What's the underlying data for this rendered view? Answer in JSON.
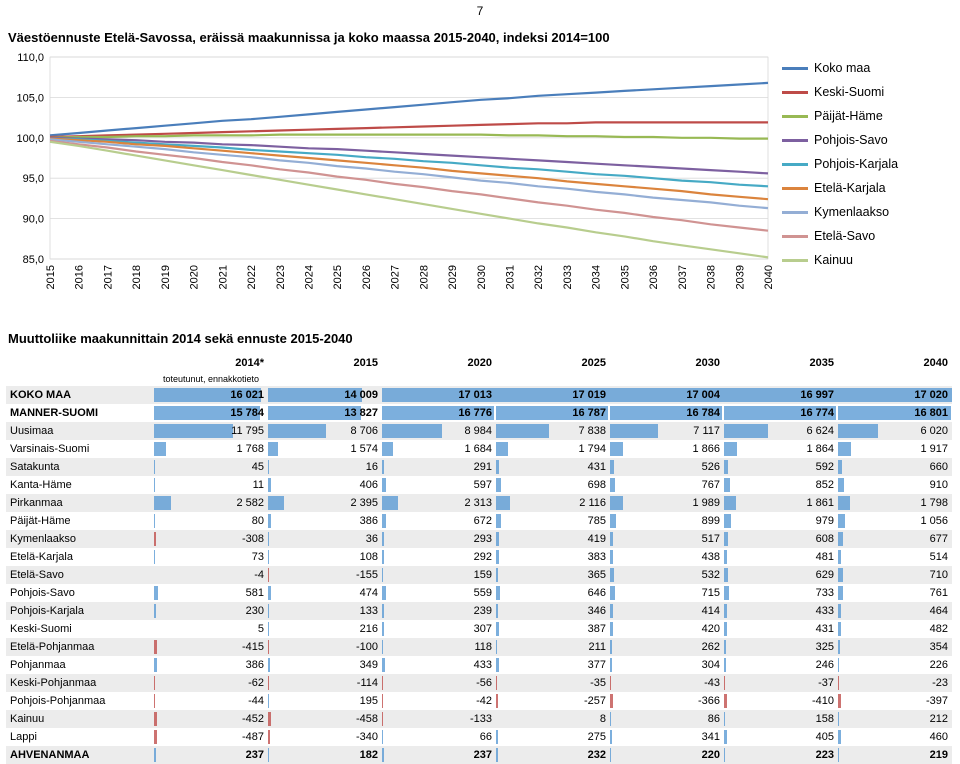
{
  "page_number": "7",
  "chart": {
    "title": "Väestöennuste Etelä-Savossa, eräissä maakunnissa ja koko maassa 2015-2040, indeksi 2014=100",
    "type": "line",
    "background_color": "#ffffff",
    "grid_color": "#d9d9d9",
    "plot_border_color": "#bfbfbf",
    "y": {
      "min": 85,
      "max": 110,
      "step": 5,
      "label_fontsize": 11,
      "ticks": [
        "85,0",
        "90,0",
        "95,0",
        "100,0",
        "105,0",
        "110,0"
      ]
    },
    "x": {
      "min": 2015,
      "max": 2040,
      "labels": [
        "2015",
        "2016",
        "2017",
        "2018",
        "2019",
        "2020",
        "2021",
        "2022",
        "2023",
        "2024",
        "2025",
        "2026",
        "2027",
        "2028",
        "2029",
        "2030",
        "2031",
        "2032",
        "2033",
        "2034",
        "2035",
        "2036",
        "2037",
        "2038",
        "2039",
        "2040"
      ],
      "label_fontsize": 11
    },
    "line_width": 2.2,
    "series": [
      {
        "name": "Koko maa",
        "color": "#4a7ebb",
        "values": [
          100.3,
          100.6,
          100.9,
          101.2,
          101.5,
          101.8,
          102.1,
          102.3,
          102.6,
          102.9,
          103.2,
          103.5,
          103.8,
          104.1,
          104.4,
          104.7,
          104.9,
          105.2,
          105.4,
          105.6,
          105.8,
          106.0,
          106.2,
          106.4,
          106.6,
          106.8
        ]
      },
      {
        "name": "Keski-Suomi",
        "color": "#be4b48",
        "values": [
          100.1,
          100.2,
          100.3,
          100.4,
          100.5,
          100.6,
          100.7,
          100.8,
          100.9,
          101.0,
          101.1,
          101.2,
          101.3,
          101.4,
          101.5,
          101.6,
          101.7,
          101.8,
          101.8,
          101.9,
          101.9,
          101.9,
          101.9,
          101.9,
          101.9,
          101.9
        ]
      },
      {
        "name": "Päijät-Häme",
        "color": "#98b954",
        "values": [
          100.0,
          100.1,
          100.1,
          100.2,
          100.2,
          100.3,
          100.3,
          100.3,
          100.4,
          100.4,
          100.4,
          100.4,
          100.4,
          100.4,
          100.4,
          100.4,
          100.3,
          100.3,
          100.2,
          100.2,
          100.1,
          100.1,
          100.0,
          100.0,
          99.9,
          99.9
        ]
      },
      {
        "name": "Pohjois-Savo",
        "color": "#7d60a0",
        "values": [
          100.0,
          99.9,
          99.8,
          99.7,
          99.5,
          99.4,
          99.2,
          99.1,
          98.9,
          98.7,
          98.6,
          98.4,
          98.2,
          98.0,
          97.8,
          97.6,
          97.4,
          97.2,
          97.0,
          96.8,
          96.6,
          96.4,
          96.2,
          96.0,
          95.8,
          95.6
        ]
      },
      {
        "name": "Pohjois-Karjala",
        "color": "#46aac5",
        "values": [
          99.9,
          99.8,
          99.6,
          99.4,
          99.2,
          99.0,
          98.8,
          98.5,
          98.3,
          98.1,
          97.9,
          97.6,
          97.4,
          97.1,
          96.9,
          96.6,
          96.3,
          96.1,
          95.8,
          95.5,
          95.3,
          95.0,
          94.7,
          94.5,
          94.2,
          94.0
        ]
      },
      {
        "name": "Etelä-Karjala",
        "color": "#db843d",
        "values": [
          99.9,
          99.7,
          99.5,
          99.2,
          99.0,
          98.7,
          98.4,
          98.1,
          97.8,
          97.5,
          97.2,
          96.9,
          96.6,
          96.3,
          95.9,
          95.6,
          95.3,
          95.0,
          94.6,
          94.3,
          94.0,
          93.7,
          93.4,
          93.0,
          92.7,
          92.4
        ]
      },
      {
        "name": "Kymenlaakso",
        "color": "#94aed5",
        "values": [
          99.8,
          99.5,
          99.2,
          98.9,
          98.6,
          98.2,
          97.9,
          97.6,
          97.2,
          96.9,
          96.5,
          96.2,
          95.8,
          95.5,
          95.1,
          94.7,
          94.4,
          94.0,
          93.7,
          93.3,
          93.0,
          92.6,
          92.3,
          92.0,
          91.6,
          91.3
        ]
      },
      {
        "name": "Etelä-Savo",
        "color": "#d09392",
        "values": [
          99.6,
          99.2,
          98.8,
          98.3,
          97.9,
          97.5,
          97.0,
          96.6,
          96.1,
          95.7,
          95.2,
          94.8,
          94.3,
          93.9,
          93.4,
          93.0,
          92.5,
          92.0,
          91.6,
          91.1,
          90.7,
          90.2,
          89.8,
          89.3,
          88.9,
          88.5
        ]
      },
      {
        "name": "Kainuu",
        "color": "#b8cd8e",
        "values": [
          99.5,
          99.0,
          98.4,
          97.8,
          97.2,
          96.6,
          96.0,
          95.4,
          94.8,
          94.2,
          93.6,
          93.0,
          92.4,
          91.8,
          91.2,
          90.6,
          90.0,
          89.4,
          88.9,
          88.3,
          87.8,
          87.2,
          86.7,
          86.2,
          85.7,
          85.2
        ]
      }
    ]
  },
  "table": {
    "title": "Muuttoliike maakunnittain 2014 sekä ennuste 2015-2040",
    "subheader": "toteutunut, ennakkotieto",
    "columns": [
      "",
      "2014*",
      "2015",
      "2020",
      "2025",
      "2030",
      "2035",
      "2040"
    ],
    "col_width_first": 140,
    "bar_pos_color": "#5b9bd5",
    "bar_neg_color": "#c0504d",
    "bar_max_abs": 17020,
    "row_stripe_color": "#ececec",
    "rows": [
      {
        "name": "KOKO MAA",
        "bold": true,
        "vals": [
          16021,
          14009,
          17013,
          17019,
          17004,
          16997,
          17020
        ]
      },
      {
        "name": "MANNER-SUOMI",
        "bold": true,
        "vals": [
          15784,
          13827,
          16776,
          16787,
          16784,
          16774,
          16801
        ]
      },
      {
        "name": "Uusimaa",
        "vals": [
          11795,
          8706,
          8984,
          7838,
          7117,
          6624,
          6020
        ]
      },
      {
        "name": "Varsinais-Suomi",
        "vals": [
          1768,
          1574,
          1684,
          1794,
          1866,
          1864,
          1917
        ]
      },
      {
        "name": "Satakunta",
        "vals": [
          45,
          16,
          291,
          431,
          526,
          592,
          660
        ]
      },
      {
        "name": "Kanta-Häme",
        "vals": [
          11,
          406,
          597,
          698,
          767,
          852,
          910
        ]
      },
      {
        "name": "Pirkanmaa",
        "vals": [
          2582,
          2395,
          2313,
          2116,
          1989,
          1861,
          1798
        ]
      },
      {
        "name": "Päijät-Häme",
        "vals": [
          80,
          386,
          672,
          785,
          899,
          979,
          1056
        ]
      },
      {
        "name": "Kymenlaakso",
        "vals": [
          -308,
          36,
          293,
          419,
          517,
          608,
          677
        ]
      },
      {
        "name": "Etelä-Karjala",
        "vals": [
          73,
          108,
          292,
          383,
          438,
          481,
          514
        ]
      },
      {
        "name": "Etelä-Savo",
        "vals": [
          -4,
          -155,
          159,
          365,
          532,
          629,
          710
        ]
      },
      {
        "name": "Pohjois-Savo",
        "vals": [
          581,
          474,
          559,
          646,
          715,
          733,
          761
        ]
      },
      {
        "name": "Pohjois-Karjala",
        "vals": [
          230,
          133,
          239,
          346,
          414,
          433,
          464
        ]
      },
      {
        "name": "Keski-Suomi",
        "vals": [
          5,
          216,
          307,
          387,
          420,
          431,
          482
        ]
      },
      {
        "name": "Etelä-Pohjanmaa",
        "vals": [
          -415,
          -100,
          118,
          211,
          262,
          325,
          354
        ]
      },
      {
        "name": "Pohjanmaa",
        "vals": [
          386,
          349,
          433,
          377,
          304,
          246,
          226
        ]
      },
      {
        "name": "Keski-Pohjanmaa",
        "vals": [
          -62,
          -114,
          -56,
          -35,
          -43,
          -37,
          -23
        ]
      },
      {
        "name": "Pohjois-Pohjanmaa",
        "vals": [
          -44,
          195,
          -42,
          -257,
          -366,
          -410,
          -397
        ]
      },
      {
        "name": "Kainuu",
        "vals": [
          -452,
          -458,
          -133,
          8,
          86,
          158,
          212
        ]
      },
      {
        "name": "Lappi",
        "vals": [
          -487,
          -340,
          66,
          275,
          341,
          405,
          460
        ]
      },
      {
        "name": "AHVENANMAA",
        "bold": true,
        "vals": [
          237,
          182,
          237,
          232,
          220,
          223,
          219
        ]
      }
    ]
  }
}
